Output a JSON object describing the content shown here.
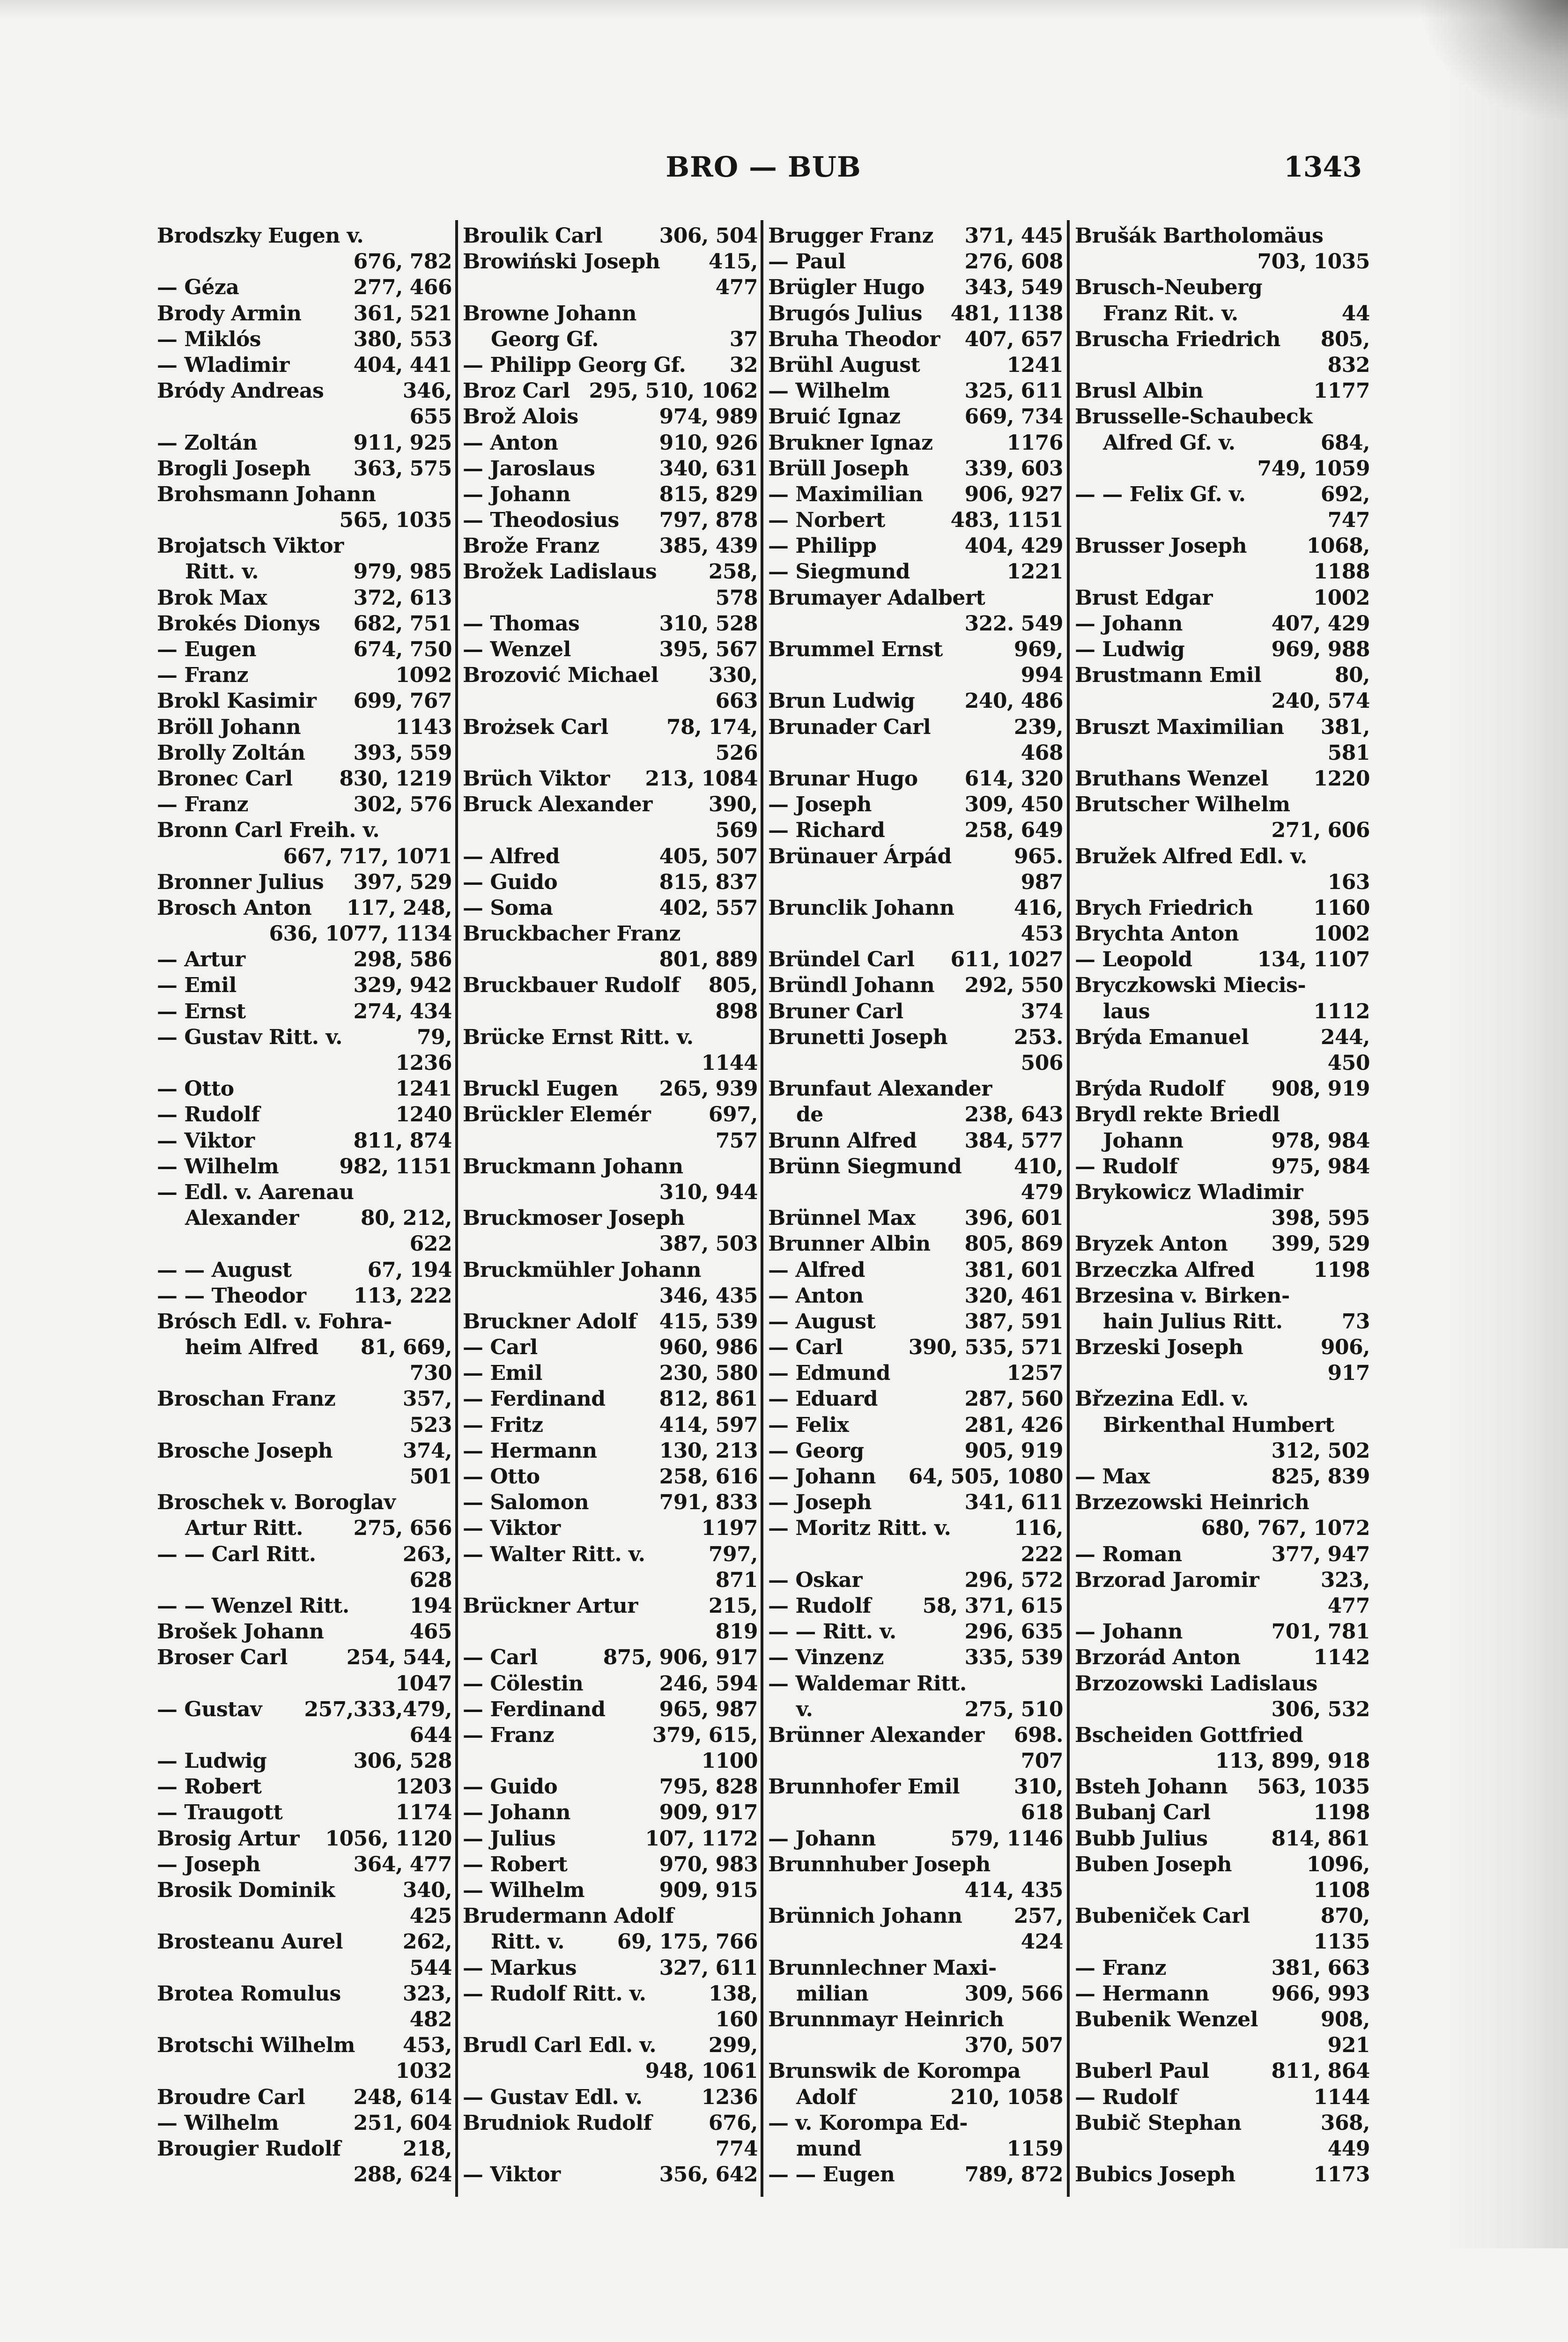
{
  "header": {
    "running_head": "BRO — BUB",
    "page_number": "1343"
  },
  "columns": [
    {
      "lines": [
        [
          "Brodszky Eugen v.",
          ""
        ],
        [
          "",
          "676, 782"
        ],
        [
          "— Géza",
          "277, 466"
        ],
        [
          "Brody Armin",
          "361, 521"
        ],
        [
          "— Miklós",
          "380, 553"
        ],
        [
          "— Wladimir",
          "404, 441"
        ],
        [
          "Bródy Andreas",
          "346,"
        ],
        [
          "",
          "655"
        ],
        [
          "— Zoltán",
          "911, 925"
        ],
        [
          "Brogli Joseph",
          "363, 575"
        ],
        [
          "Brohsmann Johann",
          ""
        ],
        [
          "",
          "565, 1035"
        ],
        [
          "Brojatsch Viktor",
          ""
        ],
        [
          "Ritt. v.",
          "979, 985",
          1
        ],
        [
          "Brok Max",
          "372, 613"
        ],
        [
          "Brokés Dionys",
          "682, 751"
        ],
        [
          "— Eugen",
          "674, 750"
        ],
        [
          "— Franz",
          "1092"
        ],
        [
          "Brokl Kasimir",
          "699, 767"
        ],
        [
          "Bröll Johann",
          "1143"
        ],
        [
          "Brolly Zoltán",
          "393, 559"
        ],
        [
          "Bronec Carl",
          "830, 1219"
        ],
        [
          "— Franz",
          "302, 576"
        ],
        [
          "Bronn Carl Freih. v.",
          ""
        ],
        [
          "",
          "667, 717, 1071"
        ],
        [
          "Bronner Julius",
          "397, 529"
        ],
        [
          "Brosch Anton",
          "117, 248,"
        ],
        [
          "",
          "636, 1077, 1134"
        ],
        [
          "— Artur",
          "298, 586"
        ],
        [
          "— Emil",
          "329, 942"
        ],
        [
          "— Ernst",
          "274, 434"
        ],
        [
          "— Gustav Ritt. v.",
          "79,"
        ],
        [
          "",
          "1236"
        ],
        [
          "— Otto",
          "1241"
        ],
        [
          "— Rudolf",
          "1240"
        ],
        [
          "— Viktor",
          "811, 874"
        ],
        [
          "— Wilhelm",
          "982, 1151"
        ],
        [
          "— Edl. v. Aarenau",
          ""
        ],
        [
          "Alexander",
          "80, 212,",
          1
        ],
        [
          "",
          "622"
        ],
        [
          "— — August",
          "67, 194"
        ],
        [
          "— — Theodor",
          "113, 222"
        ],
        [
          "Brósch Edl. v. Fohra-",
          ""
        ],
        [
          "heim Alfred",
          "81, 669,",
          1
        ],
        [
          "",
          "730"
        ],
        [
          "Broschan Franz",
          "357,"
        ],
        [
          "",
          "523"
        ],
        [
          "Brosche Joseph",
          "374,"
        ],
        [
          "",
          "501"
        ],
        [
          "Broschek v. Boroglav",
          ""
        ],
        [
          "Artur Ritt.",
          "275, 656",
          1
        ],
        [
          "— — Carl Ritt.",
          "263,"
        ],
        [
          "",
          "628"
        ],
        [
          "— — Wenzel Ritt.",
          "194"
        ],
        [
          "Brošek Johann",
          "465"
        ],
        [
          "Broser Carl",
          "254, 544,"
        ],
        [
          "",
          "1047"
        ],
        [
          "— Gustav",
          "257,333,479,"
        ],
        [
          "",
          "644"
        ],
        [
          "— Ludwig",
          "306, 528"
        ],
        [
          "— Robert",
          "1203"
        ],
        [
          "— Traugott",
          "1174"
        ],
        [
          "Brosig Artur",
          "1056, 1120"
        ],
        [
          "— Joseph",
          "364, 477"
        ],
        [
          "Brosik Dominik",
          "340,"
        ],
        [
          "",
          "425"
        ],
        [
          "Brosteanu Aurel",
          "262,"
        ],
        [
          "",
          "544"
        ],
        [
          "Brotea Romulus",
          "323,"
        ],
        [
          "",
          "482"
        ],
        [
          "Brotschi Wilhelm",
          "453,"
        ],
        [
          "",
          "1032"
        ],
        [
          "Broudre Carl",
          "248, 614"
        ],
        [
          "— Wilhelm",
          "251, 604"
        ],
        [
          "Brougier Rudolf",
          "218,"
        ],
        [
          "",
          "288, 624"
        ]
      ]
    },
    {
      "lines": [
        [
          "Broulik Carl",
          "306, 504"
        ],
        [
          "Browiński Joseph",
          "415,"
        ],
        [
          "",
          "477"
        ],
        [
          "Browne Johann",
          ""
        ],
        [
          "Georg Gf.",
          "37",
          1
        ],
        [
          "— Philipp Georg Gf.",
          "32"
        ],
        [
          "Broz Carl",
          "295, 510, 1062"
        ],
        [
          "Brož Alois",
          "974, 989"
        ],
        [
          "— Anton",
          "910, 926"
        ],
        [
          "— Jaroslaus",
          "340, 631"
        ],
        [
          "— Johann",
          "815, 829"
        ],
        [
          "— Theodosius",
          "797, 878"
        ],
        [
          "Brože Franz",
          "385, 439"
        ],
        [
          "Brožek Ladislaus",
          "258,"
        ],
        [
          "",
          "578"
        ],
        [
          "— Thomas",
          "310, 528"
        ],
        [
          "— Wenzel",
          "395, 567"
        ],
        [
          "Brozović Michael",
          "330,"
        ],
        [
          "",
          "663"
        ],
        [
          "Brożsek Carl",
          "78, 174,"
        ],
        [
          "",
          "526"
        ],
        [
          "Brüch Viktor",
          "213, 1084"
        ],
        [
          "Bruck Alexander",
          "390,"
        ],
        [
          "",
          "569"
        ],
        [
          "— Alfred",
          "405, 507"
        ],
        [
          "— Guido",
          "815, 837"
        ],
        [
          "— Soma",
          "402, 557"
        ],
        [
          "Bruckbacher Franz",
          ""
        ],
        [
          "",
          "801, 889"
        ],
        [
          "Bruckbauer Rudolf",
          "805,"
        ],
        [
          "",
          "898"
        ],
        [
          "Brücke Ernst Ritt. v.",
          ""
        ],
        [
          "",
          "1144"
        ],
        [
          "Bruckl Eugen",
          "265, 939"
        ],
        [
          "Brückler Elemér",
          "697,"
        ],
        [
          "",
          "757"
        ],
        [
          "Bruckmann Johann",
          ""
        ],
        [
          "",
          "310, 944"
        ],
        [
          "Bruckmoser Joseph",
          ""
        ],
        [
          "",
          "387, 503"
        ],
        [
          "Bruckmühler Johann",
          ""
        ],
        [
          "",
          "346, 435"
        ],
        [
          "Bruckner Adolf",
          "415, 539"
        ],
        [
          "— Carl",
          "960, 986"
        ],
        [
          "— Emil",
          "230, 580"
        ],
        [
          "— Ferdinand",
          "812, 861"
        ],
        [
          "— Fritz",
          "414, 597"
        ],
        [
          "— Hermann",
          "130, 213"
        ],
        [
          "— Otto",
          "258, 616"
        ],
        [
          "— Salomon",
          "791, 833"
        ],
        [
          "— Viktor",
          "1197"
        ],
        [
          "— Walter Ritt. v.",
          "797,"
        ],
        [
          "",
          "871"
        ],
        [
          "Brückner Artur",
          "215,"
        ],
        [
          "",
          "819"
        ],
        [
          "— Carl",
          "875, 906, 917"
        ],
        [
          "— Cölestin",
          "246, 594"
        ],
        [
          "— Ferdinand",
          "965, 987"
        ],
        [
          "— Franz",
          "379, 615,"
        ],
        [
          "",
          "1100"
        ],
        [
          "— Guido",
          "795, 828"
        ],
        [
          "— Johann",
          "909, 917"
        ],
        [
          "— Julius",
          "107, 1172"
        ],
        [
          "— Robert",
          "970, 983"
        ],
        [
          "— Wilhelm",
          "909, 915"
        ],
        [
          "Brudermann Adolf",
          ""
        ],
        [
          "Ritt. v.",
          "69, 175, 766",
          1
        ],
        [
          "— Markus",
          "327, 611"
        ],
        [
          "— Rudolf Ritt. v.",
          "138,"
        ],
        [
          "",
          "160"
        ],
        [
          "Brudl Carl Edl. v.",
          "299,"
        ],
        [
          "",
          "948, 1061"
        ],
        [
          "— Gustav Edl. v.",
          "1236"
        ],
        [
          "Brudniok Rudolf",
          "676,"
        ],
        [
          "",
          "774"
        ],
        [
          "— Viktor",
          "356, 642"
        ]
      ]
    },
    {
      "lines": [
        [
          "Brugger Franz",
          "371, 445"
        ],
        [
          "— Paul",
          "276, 608"
        ],
        [
          "Brügler Hugo",
          "343, 549"
        ],
        [
          "Brugós Julius",
          "481, 1138"
        ],
        [
          "Bruha Theodor",
          "407, 657"
        ],
        [
          "Brühl August",
          "1241"
        ],
        [
          "— Wilhelm",
          "325, 611"
        ],
        [
          "Bruić Ignaz",
          "669, 734"
        ],
        [
          "Brukner Ignaz",
          "1176"
        ],
        [
          "Brüll Joseph",
          "339, 603"
        ],
        [
          "— Maximilian",
          "906, 927"
        ],
        [
          "— Norbert",
          "483, 1151"
        ],
        [
          "— Philipp",
          "404, 429"
        ],
        [
          "— Siegmund",
          "1221"
        ],
        [
          "Brumayer Adalbert",
          ""
        ],
        [
          "",
          "322. 549"
        ],
        [
          "Brummel Ernst",
          "969,"
        ],
        [
          "",
          "994"
        ],
        [
          "Brun Ludwig",
          "240, 486"
        ],
        [
          "Brunader Carl",
          "239,"
        ],
        [
          "",
          "468"
        ],
        [
          "Brunar Hugo",
          "614, 320"
        ],
        [
          "— Joseph",
          "309, 450"
        ],
        [
          "— Richard",
          "258, 649"
        ],
        [
          "Brünauer Árpád",
          "965."
        ],
        [
          "",
          "987"
        ],
        [
          "Brunclik Johann",
          "416,"
        ],
        [
          "",
          "453"
        ],
        [
          "Bründel Carl",
          "611, 1027"
        ],
        [
          "Bründl Johann",
          "292, 550"
        ],
        [
          "Bruner Carl",
          "374"
        ],
        [
          "Brunetti Joseph",
          "253."
        ],
        [
          "",
          "506"
        ],
        [
          "Brunfaut Alexander",
          ""
        ],
        [
          "de",
          "238, 643",
          1
        ],
        [
          "Brunn Alfred",
          "384, 577"
        ],
        [
          "Brünn Siegmund",
          "410,"
        ],
        [
          "",
          "479"
        ],
        [
          "Brünnel Max",
          "396, 601"
        ],
        [
          "Brunner Albin",
          "805, 869"
        ],
        [
          "— Alfred",
          "381, 601"
        ],
        [
          "— Anton",
          "320, 461"
        ],
        [
          "— August",
          "387, 591"
        ],
        [
          "— Carl",
          "390, 535, 571"
        ],
        [
          "— Edmund",
          "1257"
        ],
        [
          "— Eduard",
          "287, 560"
        ],
        [
          "— Felix",
          "281, 426"
        ],
        [
          "— Georg",
          "905, 919"
        ],
        [
          "— Johann",
          "64, 505, 1080"
        ],
        [
          "— Joseph",
          "341, 611"
        ],
        [
          "— Moritz Ritt. v.",
          "116,"
        ],
        [
          "",
          "222"
        ],
        [
          "— Oskar",
          "296, 572"
        ],
        [
          "— Rudolf",
          "58, 371, 615"
        ],
        [
          "— — Ritt. v.",
          "296, 635"
        ],
        [
          "— Vinzenz",
          "335, 539"
        ],
        [
          "— Waldemar Ritt.",
          ""
        ],
        [
          "v.",
          "275, 510",
          1
        ],
        [
          "Brünner Alexander",
          "698."
        ],
        [
          "",
          "707"
        ],
        [
          "Brunnhofer Emil",
          "310,"
        ],
        [
          "",
          "618"
        ],
        [
          "— Johann",
          "579, 1146"
        ],
        [
          "Brunnhuber Joseph",
          ""
        ],
        [
          "",
          "414, 435"
        ],
        [
          "Brünnich Johann",
          "257,"
        ],
        [
          "",
          "424"
        ],
        [
          "Brunnlechner Maxi-",
          ""
        ],
        [
          "milian",
          "309, 566",
          1
        ],
        [
          "Brunnmayr Heinrich",
          ""
        ],
        [
          "",
          "370, 507"
        ],
        [
          "Brunswik de Korompa",
          ""
        ],
        [
          "Adolf",
          "210, 1058",
          1
        ],
        [
          "— v. Korompa Ed-",
          ""
        ],
        [
          "mund",
          "1159",
          1
        ],
        [
          "— — Eugen",
          "789, 872"
        ]
      ]
    },
    {
      "lines": [
        [
          "Brušák Bartholomäus",
          ""
        ],
        [
          "",
          "703, 1035"
        ],
        [
          "Brusch-Neuberg",
          ""
        ],
        [
          "Franz Rit. v.",
          "44",
          1
        ],
        [
          "Bruscha Friedrich",
          "805,"
        ],
        [
          "",
          "832"
        ],
        [
          "Brusl Albin",
          "1177"
        ],
        [
          "Brusselle-Schaubeck",
          ""
        ],
        [
          "Alfred Gf. v.",
          "684,",
          1
        ],
        [
          "",
          "749, 1059"
        ],
        [
          "— — Felix Gf. v.",
          "692,"
        ],
        [
          "",
          "747"
        ],
        [
          "Brusser Joseph",
          "1068,"
        ],
        [
          "",
          "1188"
        ],
        [
          "Brust Edgar",
          "1002"
        ],
        [
          "— Johann",
          "407, 429"
        ],
        [
          "— Ludwig",
          "969, 988"
        ],
        [
          "Brustmann Emil",
          "80,"
        ],
        [
          "",
          "240, 574"
        ],
        [
          "Bruszt Maximilian",
          "381,"
        ],
        [
          "",
          "581"
        ],
        [
          "Bruthans Wenzel",
          "1220"
        ],
        [
          "Brutscher Wilhelm",
          ""
        ],
        [
          "",
          "271, 606"
        ],
        [
          "Bružek Alfred Edl. v.",
          ""
        ],
        [
          "",
          "163"
        ],
        [
          "Brych Friedrich",
          "1160"
        ],
        [
          "Brychta Anton",
          "1002"
        ],
        [
          "— Leopold",
          "134, 1107"
        ],
        [
          "Bryczkowski Miecis-",
          ""
        ],
        [
          "laus",
          "1112",
          1
        ],
        [
          "Brýda Emanuel",
          "244,"
        ],
        [
          "",
          "450"
        ],
        [
          "Brýda Rudolf",
          "908, 919"
        ],
        [
          "Brydl rekte Briedl",
          ""
        ],
        [
          "Johann",
          "978, 984",
          1
        ],
        [
          "— Rudolf",
          "975, 984"
        ],
        [
          "Brykowicz Wladimir",
          ""
        ],
        [
          "",
          "398, 595"
        ],
        [
          "Bryzek Anton",
          "399, 529"
        ],
        [
          "Brzeczka Alfred",
          "1198"
        ],
        [
          "Brzesina v. Birken-",
          ""
        ],
        [
          "hain Julius Ritt.",
          "73",
          1
        ],
        [
          "Brzeski Joseph",
          "906,"
        ],
        [
          "",
          "917"
        ],
        [
          "Břzezina Edl. v.",
          ""
        ],
        [
          "Birkenthal Humbert",
          "",
          1
        ],
        [
          "",
          "312, 502"
        ],
        [
          "— Max",
          "825, 839"
        ],
        [
          "Brzezowski Heinrich",
          ""
        ],
        [
          "",
          "680, 767, 1072"
        ],
        [
          "— Roman",
          "377, 947"
        ],
        [
          "Brzorad Jaromir",
          "323,"
        ],
        [
          "",
          "477"
        ],
        [
          "— Johann",
          "701, 781"
        ],
        [
          "Brzorád Anton",
          "1142"
        ],
        [
          "Brzozowski Ladislaus",
          ""
        ],
        [
          "",
          "306, 532"
        ],
        [
          "Bscheiden Gottfried",
          ""
        ],
        [
          "",
          "113, 899, 918"
        ],
        [
          "Bsteh Johann",
          "563, 1035"
        ],
        [
          "Bubanj Carl",
          "1198"
        ],
        [
          "Bubb Julius",
          "814, 861"
        ],
        [
          "Buben Joseph",
          "1096,"
        ],
        [
          "",
          "1108"
        ],
        [
          "Bubeniček Carl",
          "870,"
        ],
        [
          "",
          "1135"
        ],
        [
          "— Franz",
          "381, 663"
        ],
        [
          "— Hermann",
          "966, 993"
        ],
        [
          "Bubenik Wenzel",
          "908,"
        ],
        [
          "",
          "921"
        ],
        [
          "Buberl Paul",
          "811, 864"
        ],
        [
          "— Rudolf",
          "1144"
        ],
        [
          "Bubič Stephan",
          "368,"
        ],
        [
          "",
          "449"
        ],
        [
          "Bubics Joseph",
          "1173"
        ]
      ]
    }
  ]
}
